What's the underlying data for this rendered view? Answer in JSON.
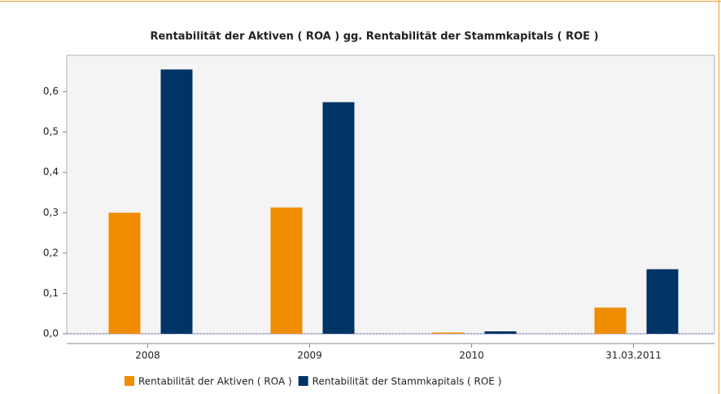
{
  "chart_data": {
    "type": "bar",
    "title": "Rentabilität der Aktiven ( ROA ) gg. Rentabilität der Stammkapitals ( ROE )",
    "categories": [
      "2008",
      "2009",
      "2010",
      "31.03.2011"
    ],
    "series": [
      {
        "name": "Rentabilität der Aktiven ( ROA )",
        "color": "#f08c00",
        "values": [
          0.3,
          0.313,
          0.003,
          0.065
        ]
      },
      {
        "name": "Rentabilität der Stammkapitals ( ROE )",
        "color": "#003366",
        "values": [
          0.655,
          0.574,
          0.006,
          0.16
        ]
      }
    ],
    "ylim": [
      0,
      0.69
    ],
    "yticks": [
      {
        "value": 0,
        "label": "0,0"
      },
      {
        "value": 0.1,
        "label": "0,1"
      },
      {
        "value": 0.2,
        "label": "0,2"
      },
      {
        "value": 0.3,
        "label": "0,3"
      },
      {
        "value": 0.4,
        "label": "0,4"
      },
      {
        "value": 0.5,
        "label": "0,5"
      },
      {
        "value": 0.6,
        "label": "0,6"
      }
    ]
  }
}
